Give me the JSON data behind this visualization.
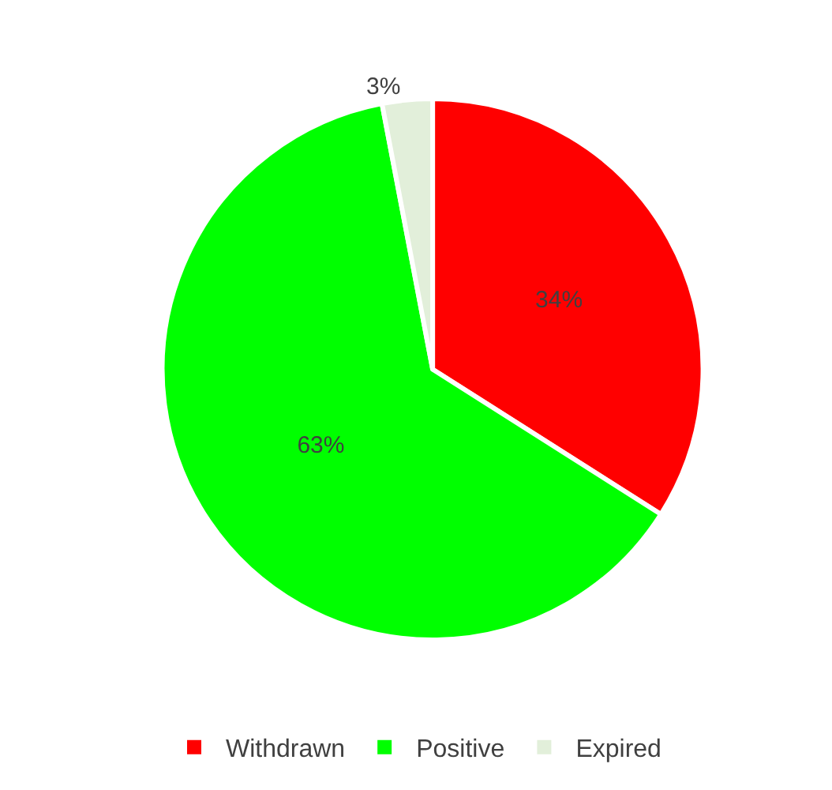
{
  "chart_data": {
    "type": "pie",
    "categories": [
      "Withdrawn",
      "Positive",
      "Expired"
    ],
    "values": [
      34,
      63,
      3
    ],
    "colors": [
      "#ff0000",
      "#00ff00",
      "#e2efda"
    ],
    "value_labels": [
      "34%",
      "63%",
      "3%"
    ],
    "legend": "bottom"
  }
}
